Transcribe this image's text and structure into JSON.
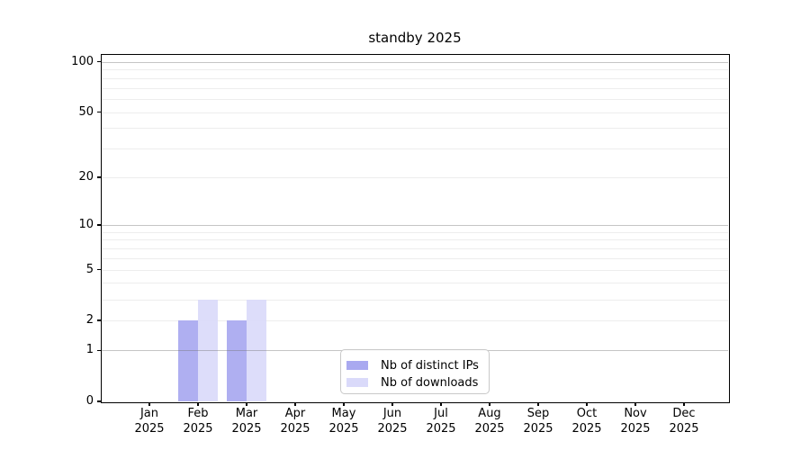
{
  "chart_data": {
    "type": "bar",
    "title": "standby 2025",
    "x_tick_months": [
      "Jan",
      "Feb",
      "Mar",
      "Apr",
      "May",
      "Jun",
      "Jul",
      "Aug",
      "Sep",
      "Oct",
      "Nov",
      "Dec"
    ],
    "x_tick_year": "2025",
    "series": [
      {
        "name": "Nb of distinct IPs",
        "color": "#a9a9f0",
        "values": [
          0,
          2,
          2,
          0,
          0,
          0,
          0,
          0,
          0,
          0,
          0,
          0
        ]
      },
      {
        "name": "Nb of downloads",
        "color": "#dadafa",
        "values": [
          0,
          3,
          3,
          0,
          0,
          0,
          0,
          0,
          0,
          0,
          0,
          0
        ]
      }
    ],
    "yscale": "log1p",
    "ylim": [
      0,
      110
    ],
    "yticks": [
      0,
      1,
      2,
      5,
      10,
      20,
      50,
      100
    ],
    "gridlines": {
      "major": [
        1,
        10,
        100
      ],
      "minor": [
        2,
        3,
        4,
        5,
        6,
        7,
        8,
        9,
        20,
        30,
        40,
        50,
        60,
        70,
        80,
        90
      ]
    },
    "grid": true,
    "legend": {
      "position": "lower center"
    }
  }
}
